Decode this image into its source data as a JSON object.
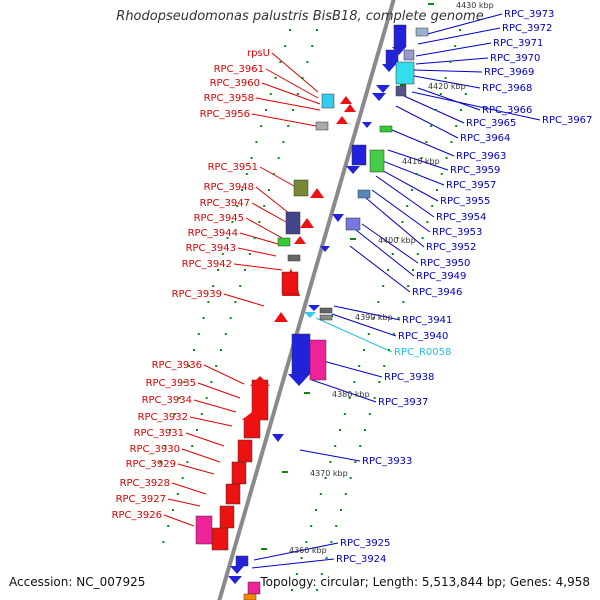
{
  "title": "Rhodopseudomonas palustris BisB18, complete genome",
  "accession": "Accession: NC_007925",
  "topology": "Topology: circular; Length: 5,513,844 bp; Genes: 4,958",
  "colors": {
    "left_labels": "#e00000",
    "right_labels": "#0000c8",
    "rna_label": "#22c0e0",
    "axis": "#999999",
    "ticks": "#118811"
  },
  "kbp_labels": [
    "4430 kbp",
    "4420 kbp",
    "4410 kbp",
    "4400 kbp",
    "4390 kbp",
    "4380 kbp",
    "4370 kbp",
    "4360 kbp"
  ],
  "left_genes": [
    "rpsU",
    "RPC_3961",
    "RPC_3960",
    "RPC_3958",
    "RPC_3956",
    "RPC_3951",
    "RPC_3948",
    "RPC_3947",
    "RPC_3945",
    "RPC_3944",
    "RPC_3943",
    "RPC_3942",
    "RPC_3939",
    "RPC_3936",
    "RPC_3935",
    "RPC_3934",
    "RPC_3932",
    "RPC_3931",
    "RPC_3930",
    "RPC_3929",
    "RPC_3928",
    "RPC_3927",
    "RPC_3926"
  ],
  "right_genes": [
    "RPC_3973",
    "RPC_3972",
    "RPC_3971",
    "RPC_3970",
    "RPC_3969",
    "RPC_3968",
    "RPC_3966",
    "RPC_3967",
    "RPC_3965",
    "RPC_3964",
    "RPC_3963",
    "RPC_3959",
    "RPC_3957",
    "RPC_3955",
    "RPC_3954",
    "RPC_3953",
    "RPC_3952",
    "RPC_3950",
    "RPC_3949",
    "RPC_3946",
    "RPC_3941",
    "RPC_3940",
    "RPC_R0058",
    "RPC_3938",
    "RPC_3937",
    "RPC_3933",
    "RPC_3925",
    "RPC_3924"
  ]
}
